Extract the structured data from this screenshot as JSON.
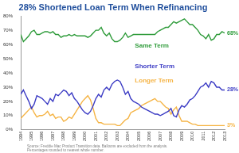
{
  "chart_data": {
    "type": "line",
    "title": "28% Shortened Loan Term When Refinancing",
    "source": [
      "Source: Freddie Mac Product Transition data. Balloons are excluded from the analysis.",
      "Percentages rounded to nearest whole number."
    ],
    "categories": [
      "1994",
      null,
      null,
      null,
      "1995",
      null,
      null,
      null,
      "1996",
      null,
      null,
      null,
      "1997",
      null,
      null,
      null,
      "1998",
      null,
      null,
      null,
      "1999",
      null,
      null,
      null,
      "2000",
      null,
      null,
      null,
      "2001",
      null,
      null,
      null,
      "2002",
      null,
      null,
      null,
      "2003",
      null,
      null,
      null,
      "2004",
      null,
      null,
      null,
      "2005",
      null,
      null,
      null,
      "2006",
      null,
      null,
      null,
      "2007",
      null,
      null,
      null,
      "2008",
      null,
      null,
      null,
      "2009",
      null,
      null,
      null,
      "2010",
      null,
      null,
      null,
      "2011",
      null,
      null,
      null,
      "2012",
      null,
      null,
      null,
      "2013"
    ],
    "series": [
      {
        "name": "Same Term",
        "color": "#2e9b3a",
        "values": [
          67,
          62,
          64,
          66,
          69,
          70,
          67,
          67,
          68,
          69,
          69,
          68,
          69,
          67,
          67,
          65,
          66,
          66,
          67,
          66,
          67,
          66,
          66,
          66,
          66,
          65,
          66,
          68,
          70,
          70,
          72,
          68,
          66,
          68,
          64,
          62,
          62,
          63,
          65,
          68,
          65,
          66,
          67,
          67,
          67,
          67,
          67,
          67,
          67,
          67,
          67,
          69,
          70,
          71,
          72,
          72,
          74,
          76,
          75,
          76,
          77,
          78,
          76,
          74,
          74,
          72,
          70,
          67,
          66,
          64,
          67,
          63,
          64,
          67,
          67,
          69,
          68
        ],
        "value_labels": [
          null,
          null,
          null,
          null,
          null,
          null,
          null,
          null,
          null,
          null,
          null,
          null,
          null,
          null,
          null,
          null,
          null,
          null,
          null,
          null,
          null,
          null,
          null,
          null,
          null,
          null,
          null,
          null,
          null,
          null,
          null,
          null,
          null,
          null,
          null,
          null,
          null,
          null,
          null,
          null,
          null,
          null,
          null,
          null,
          null,
          null,
          null,
          null,
          null,
          null,
          null,
          null,
          null,
          null,
          null,
          null,
          null,
          null,
          null,
          null,
          null,
          null,
          null,
          null,
          null,
          null,
          null,
          null,
          null,
          null,
          null,
          null,
          null,
          null,
          null,
          null,
          "68%"
        ]
      },
      {
        "name": "Shorter Term",
        "color": "#3b3bc4",
        "values": [
          25,
          28,
          24,
          20,
          15,
          18,
          24,
          23,
          22,
          20,
          18,
          22,
          20,
          25,
          24,
          26,
          28,
          27,
          24,
          26,
          22,
          20,
          17,
          14,
          12,
          11,
          13,
          17,
          22,
          25,
          23,
          28,
          30,
          28,
          32,
          34,
          35,
          34,
          30,
          25,
          27,
          22,
          20,
          19,
          18,
          16,
          15,
          14,
          13,
          12,
          11,
          11,
          10,
          11,
          12,
          13,
          15,
          10,
          9,
          14,
          17,
          16,
          18,
          21,
          22,
          24,
          27,
          30,
          31,
          33,
          30,
          34,
          33,
          30,
          30,
          28,
          28
        ],
        "value_labels": [
          null,
          null,
          null,
          null,
          null,
          null,
          null,
          null,
          null,
          null,
          null,
          null,
          null,
          null,
          null,
          null,
          null,
          null,
          null,
          null,
          null,
          null,
          null,
          null,
          null,
          null,
          null,
          null,
          null,
          null,
          null,
          null,
          null,
          null,
          null,
          null,
          null,
          null,
          null,
          null,
          null,
          null,
          null,
          null,
          null,
          null,
          null,
          null,
          null,
          null,
          null,
          null,
          null,
          null,
          null,
          null,
          null,
          null,
          null,
          null,
          null,
          null,
          null,
          null,
          null,
          null,
          null,
          null,
          null,
          null,
          null,
          null,
          null,
          null,
          null,
          null,
          "28%"
        ]
      },
      {
        "name": "Longer Term",
        "color": "#f5b445",
        "values": [
          8,
          10,
          12,
          14,
          16,
          12,
          9,
          10,
          10,
          11,
          13,
          10,
          11,
          8,
          9,
          9,
          6,
          7,
          9,
          8,
          11,
          14,
          17,
          20,
          22,
          24,
          21,
          15,
          8,
          5,
          5,
          4,
          4,
          4,
          4,
          4,
          3,
          3,
          5,
          7,
          8,
          12,
          13,
          14,
          15,
          17,
          18,
          19,
          20,
          21,
          22,
          20,
          20,
          18,
          16,
          15,
          11,
          14,
          16,
          10,
          6,
          6,
          6,
          5,
          4,
          4,
          3,
          3,
          3,
          3,
          3,
          3,
          3,
          3,
          3,
          3,
          3
        ],
        "value_labels": [
          null,
          null,
          null,
          null,
          null,
          null,
          null,
          null,
          null,
          null,
          null,
          null,
          null,
          null,
          null,
          null,
          null,
          null,
          null,
          null,
          null,
          null,
          null,
          null,
          null,
          null,
          null,
          null,
          null,
          null,
          null,
          null,
          null,
          null,
          null,
          null,
          null,
          null,
          null,
          null,
          null,
          null,
          null,
          null,
          null,
          null,
          null,
          null,
          null,
          null,
          null,
          null,
          null,
          null,
          null,
          null,
          null,
          null,
          null,
          null,
          null,
          null,
          null,
          null,
          null,
          null,
          null,
          null,
          null,
          null,
          null,
          null,
          null,
          null,
          null,
          null,
          "3%"
        ]
      }
    ],
    "ylim": [
      0,
      80
    ],
    "yticks": [
      {
        "value": 0,
        "label": "0%"
      },
      {
        "value": 10,
        "label": "10%"
      },
      {
        "value": 20,
        "label": "20%"
      },
      {
        "value": 30,
        "label": "30%"
      },
      {
        "value": 40,
        "label": "40%"
      },
      {
        "value": 50,
        "label": "50%"
      },
      {
        "value": 60,
        "label": "60%"
      },
      {
        "value": 70,
        "label": "70%"
      },
      {
        "value": 80,
        "label": "80%"
      }
    ],
    "grid": false
  }
}
